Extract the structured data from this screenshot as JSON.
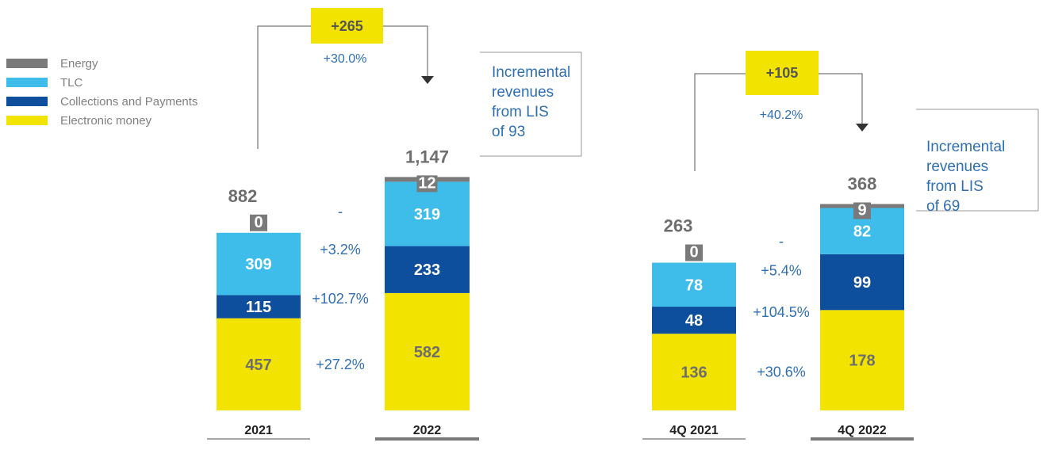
{
  "colors": {
    "Energy": "#7a7a7a",
    "TLC": "#3fbdea",
    "Collections and Payments": "#0d4f9c",
    "Electronic money": "#f2e300",
    "note_text": "#2f6fb3",
    "highlight": "#f2e300"
  },
  "legend": [
    "Energy",
    "TLC",
    "Collections and Payments",
    "Electronic money"
  ],
  "chart_data": [
    {
      "type": "bar",
      "stacked": true,
      "categories": [
        "2021",
        "2022"
      ],
      "series": [
        {
          "name": "Electronic money",
          "values": [
            457,
            582
          ]
        },
        {
          "name": "Collections and Payments",
          "values": [
            115,
            233
          ]
        },
        {
          "name": "TLC",
          "values": [
            309,
            319
          ]
        },
        {
          "name": "Energy",
          "values": [
            0,
            12
          ]
        }
      ],
      "totals": [
        "882",
        "1,147"
      ],
      "change_labels": {
        "Energy": "-",
        "TLC": "+3.2%",
        "Collections and Payments": "+102.7%",
        "Electronic money": "+27.2%"
      },
      "delta": {
        "value": "+265",
        "percent": "+30.0%"
      },
      "note": [
        "Incremental",
        "revenues",
        "from LIS",
        "of 93"
      ]
    },
    {
      "type": "bar",
      "stacked": true,
      "categories": [
        "4Q 2021",
        "4Q 2022"
      ],
      "series": [
        {
          "name": "Electronic money",
          "values": [
            136,
            178
          ]
        },
        {
          "name": "Collections and Payments",
          "values": [
            48,
            99
          ]
        },
        {
          "name": "TLC",
          "values": [
            78,
            82
          ]
        },
        {
          "name": "Energy",
          "values": [
            0,
            9
          ]
        }
      ],
      "totals": [
        "263",
        "368"
      ],
      "change_labels": {
        "Energy": "-",
        "TLC": "+5.4%",
        "Collections and Payments": "+104.5%",
        "Electronic money": "+30.6%"
      },
      "delta": {
        "value": "+105",
        "percent": "+40.2%"
      },
      "note": [
        "Incremental",
        "revenues",
        "from LIS",
        "of 69"
      ]
    }
  ]
}
